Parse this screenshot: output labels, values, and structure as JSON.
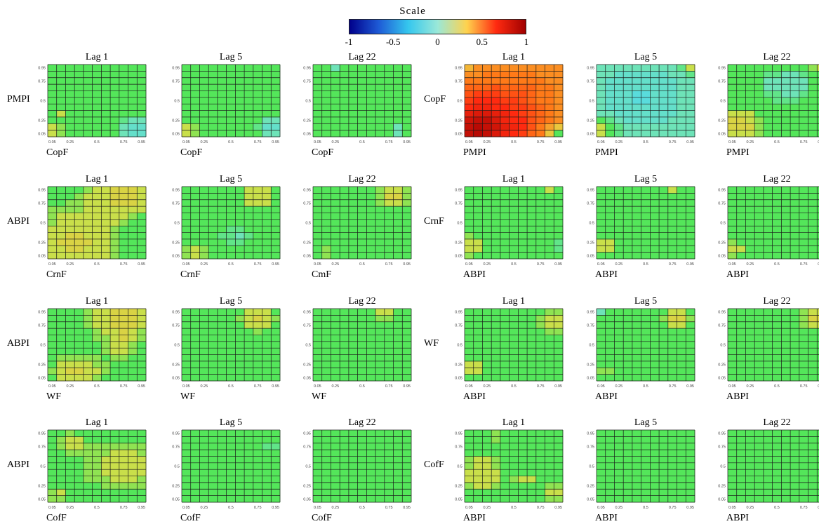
{
  "legend": {
    "title": "Scale",
    "ticks": [
      "-1",
      "-0.5",
      "0",
      "0.5",
      "1"
    ],
    "tick_values": [
      -1,
      -0.5,
      0,
      0.5,
      1
    ],
    "colors": [
      "#00008b",
      "#1e5bd6",
      "#35c7ee",
      "#9ae8d8",
      "#ffd24d",
      "#ff2a10",
      "#a00000"
    ]
  },
  "chart_data": {
    "type": "heatmap",
    "quantiles": [
      0.05,
      0.15,
      0.25,
      0.35,
      0.45,
      0.5,
      0.55,
      0.65,
      0.75,
      0.85,
      0.95
    ],
    "x_ticks": [
      "0.05",
      "0.25",
      "0.5",
      "0.75",
      "0.95"
    ],
    "y_ticks": [
      "0.95",
      "0.75",
      "0.5",
      "0.25",
      "0.05"
    ],
    "panels": [
      {
        "row": 0,
        "col": 0,
        "title": "Lag 1",
        "ylabel": "PMPI",
        "xlabel": "CopF",
        "base": 0.0,
        "blobs": [
          {
            "x": 0.9,
            "y": 0.1,
            "v": -0.18,
            "r": 0.15
          },
          {
            "x": 0.05,
            "y": 0.1,
            "v": 0.12,
            "r": 0.1
          },
          {
            "x": 0.15,
            "y": 0.35,
            "v": 0.1,
            "r": 0.05
          },
          {
            "x": 0.2,
            "y": 0.95,
            "v": -0.12,
            "r": 0.03
          }
        ]
      },
      {
        "row": 0,
        "col": 1,
        "title": "Lag 5",
        "ylabel": "",
        "xlabel": "CopF",
        "base": 0.0,
        "blobs": [
          {
            "x": 0.9,
            "y": 0.15,
            "v": -0.14,
            "r": 0.12
          },
          {
            "x": 0.08,
            "y": 0.1,
            "v": 0.1,
            "r": 0.1
          }
        ]
      },
      {
        "row": 0,
        "col": 2,
        "title": "Lag 22",
        "ylabel": "",
        "xlabel": "CopF",
        "base": 0.0,
        "blobs": [
          {
            "x": 0.85,
            "y": 0.1,
            "v": -0.1,
            "r": 0.08
          },
          {
            "x": 0.25,
            "y": 0.95,
            "v": -0.1,
            "r": 0.03
          }
        ]
      },
      {
        "row": 0,
        "col": 3,
        "title": "Lag 1",
        "ylabel": "CopF",
        "xlabel": "PMPI",
        "base": 0.32,
        "blobs": [
          {
            "x": 0.15,
            "y": 0.1,
            "v": 0.55,
            "r": 0.28
          },
          {
            "x": 0.5,
            "y": 0.5,
            "v": 0.12,
            "r": 0.3
          },
          {
            "x": 0.95,
            "y": 0.05,
            "v": -0.35,
            "r": 0.08
          },
          {
            "x": 0.05,
            "y": 0.95,
            "v": -0.1,
            "r": 0.05
          }
        ]
      },
      {
        "row": 0,
        "col": 4,
        "title": "Lag 5",
        "ylabel": "",
        "xlabel": "PMPI",
        "base": -0.1,
        "blobs": [
          {
            "x": 0.45,
            "y": 0.55,
            "v": -0.08,
            "r": 0.25
          },
          {
            "x": 0.05,
            "y": 0.1,
            "v": 0.2,
            "r": 0.12
          },
          {
            "x": 0.95,
            "y": 0.95,
            "v": 0.2,
            "r": 0.06
          }
        ]
      },
      {
        "row": 0,
        "col": 5,
        "title": "Lag 22",
        "ylabel": "",
        "xlabel": "PMPI",
        "base": 0.02,
        "blobs": [
          {
            "x": 0.15,
            "y": 0.2,
            "v": 0.14,
            "r": 0.15
          },
          {
            "x": 0.6,
            "y": 0.7,
            "v": -0.14,
            "r": 0.2
          },
          {
            "x": 0.9,
            "y": 0.95,
            "v": 0.12,
            "r": 0.05
          }
        ]
      },
      {
        "row": 1,
        "col": 0,
        "title": "Lag 1",
        "ylabel": "ABPI",
        "xlabel": "CrnF",
        "base": 0.03,
        "blobs": [
          {
            "x": 0.75,
            "y": 0.85,
            "v": 0.14,
            "r": 0.2
          },
          {
            "x": 0.3,
            "y": 0.25,
            "v": 0.12,
            "r": 0.25
          },
          {
            "x": 0.9,
            "y": 0.35,
            "v": -0.08,
            "r": 0.12
          }
        ]
      },
      {
        "row": 1,
        "col": 1,
        "title": "Lag 5",
        "ylabel": "",
        "xlabel": "CrnF",
        "base": 0.0,
        "blobs": [
          {
            "x": 0.75,
            "y": 0.85,
            "v": 0.12,
            "r": 0.15
          },
          {
            "x": 0.55,
            "y": 0.35,
            "v": -0.08,
            "r": 0.12
          },
          {
            "x": 0.15,
            "y": 0.1,
            "v": 0.1,
            "r": 0.12
          }
        ]
      },
      {
        "row": 1,
        "col": 2,
        "title": "Lag 22",
        "ylabel": "",
        "xlabel": "CmF",
        "base": 0.0,
        "blobs": [
          {
            "x": 0.8,
            "y": 0.85,
            "v": 0.14,
            "r": 0.13
          },
          {
            "x": 0.15,
            "y": 0.1,
            "v": 0.08,
            "r": 0.1
          }
        ]
      },
      {
        "row": 1,
        "col": 3,
        "title": "Lag 1",
        "ylabel": "CrnF",
        "xlabel": "ABPI",
        "base": 0.0,
        "blobs": [
          {
            "x": 0.08,
            "y": 0.2,
            "v": 0.12,
            "r": 0.12
          },
          {
            "x": 0.95,
            "y": 0.2,
            "v": -0.1,
            "r": 0.06
          },
          {
            "x": 0.7,
            "y": 0.65,
            "v": 0.12,
            "r": 0.03
          },
          {
            "x": 0.85,
            "y": 0.95,
            "v": 0.12,
            "r": 0.03
          }
        ]
      },
      {
        "row": 1,
        "col": 4,
        "title": "Lag 5",
        "ylabel": "",
        "xlabel": "ABPI",
        "base": 0.0,
        "blobs": [
          {
            "x": 0.08,
            "y": 0.2,
            "v": 0.12,
            "r": 0.1
          },
          {
            "x": 0.75,
            "y": 0.95,
            "v": 0.12,
            "r": 0.03
          },
          {
            "x": 0.95,
            "y": 0.1,
            "v": -0.08,
            "r": 0.04
          }
        ]
      },
      {
        "row": 1,
        "col": 5,
        "title": "Lag 22",
        "ylabel": "",
        "xlabel": "ABPI",
        "base": 0.0,
        "blobs": [
          {
            "x": 0.08,
            "y": 0.15,
            "v": 0.12,
            "r": 0.09
          }
        ]
      },
      {
        "row": 2,
        "col": 0,
        "title": "Lag 1",
        "ylabel": "ABPI",
        "xlabel": "WF",
        "base": 0.02,
        "blobs": [
          {
            "x": 0.75,
            "y": 0.85,
            "v": 0.14,
            "r": 0.2
          },
          {
            "x": 0.3,
            "y": 0.15,
            "v": 0.12,
            "r": 0.16
          },
          {
            "x": 0.7,
            "y": 0.5,
            "v": 0.08,
            "r": 0.1
          }
        ]
      },
      {
        "row": 2,
        "col": 1,
        "title": "Lag 5",
        "ylabel": "",
        "xlabel": "WF",
        "base": 0.0,
        "blobs": [
          {
            "x": 0.75,
            "y": 0.85,
            "v": 0.14,
            "r": 0.15
          },
          {
            "x": 0.1,
            "y": 0.1,
            "v": 0.06,
            "r": 0.08
          },
          {
            "x": 0.95,
            "y": 0.1,
            "v": -0.1,
            "r": 0.04
          }
        ]
      },
      {
        "row": 2,
        "col": 2,
        "title": "Lag 22",
        "ylabel": "",
        "xlabel": "WF",
        "base": 0.0,
        "blobs": [
          {
            "x": 0.7,
            "y": 0.95,
            "v": 0.12,
            "r": 0.1
          },
          {
            "x": 0.65,
            "y": 0.1,
            "v": -0.08,
            "r": 0.04
          }
        ]
      },
      {
        "row": 2,
        "col": 3,
        "title": "Lag 1",
        "ylabel": "WF",
        "xlabel": "ABPI",
        "base": 0.0,
        "blobs": [
          {
            "x": 0.9,
            "y": 0.8,
            "v": 0.12,
            "r": 0.15
          },
          {
            "x": 0.1,
            "y": 0.2,
            "v": 0.1,
            "r": 0.1
          },
          {
            "x": 0.45,
            "y": 0.6,
            "v": 0.1,
            "r": 0.03
          }
        ]
      },
      {
        "row": 2,
        "col": 4,
        "title": "Lag 5",
        "ylabel": "",
        "xlabel": "ABPI",
        "base": 0.0,
        "blobs": [
          {
            "x": 0.8,
            "y": 0.85,
            "v": 0.15,
            "r": 0.12
          },
          {
            "x": 0.1,
            "y": 0.15,
            "v": 0.1,
            "r": 0.05
          },
          {
            "x": 0.05,
            "y": 0.95,
            "v": -0.1,
            "r": 0.03
          }
        ]
      },
      {
        "row": 2,
        "col": 5,
        "title": "Lag 22",
        "ylabel": "",
        "xlabel": "ABPI",
        "base": 0.0,
        "blobs": [
          {
            "x": 0.9,
            "y": 0.85,
            "v": 0.16,
            "r": 0.12
          },
          {
            "x": 0.1,
            "y": 0.95,
            "v": -0.1,
            "r": 0.03
          }
        ]
      },
      {
        "row": 3,
        "col": 0,
        "title": "Lag 1",
        "ylabel": "ABPI",
        "xlabel": "CofF",
        "base": 0.02,
        "blobs": [
          {
            "x": 0.75,
            "y": 0.5,
            "v": 0.1,
            "r": 0.22
          },
          {
            "x": 0.25,
            "y": 0.8,
            "v": 0.08,
            "r": 0.12
          },
          {
            "x": 0.1,
            "y": 0.1,
            "v": 0.07,
            "r": 0.1
          }
        ]
      },
      {
        "row": 3,
        "col": 1,
        "title": "Lag 5",
        "ylabel": "",
        "xlabel": "CofF",
        "base": 0.0,
        "blobs": [
          {
            "x": 0.9,
            "y": 0.75,
            "v": -0.1,
            "r": 0.05
          }
        ]
      },
      {
        "row": 3,
        "col": 2,
        "title": "Lag 22",
        "ylabel": "",
        "xlabel": "CofF",
        "base": 0.0,
        "blobs": []
      },
      {
        "row": 3,
        "col": 3,
        "title": "Lag 1",
        "ylabel": "CofF",
        "xlabel": "ABPI",
        "base": 0.02,
        "blobs": [
          {
            "x": 0.2,
            "y": 0.4,
            "v": 0.1,
            "r": 0.15
          },
          {
            "x": 0.9,
            "y": 0.15,
            "v": 0.1,
            "r": 0.08
          },
          {
            "x": 0.6,
            "y": 0.35,
            "v": 0.08,
            "r": 0.06
          },
          {
            "x": 0.35,
            "y": 0.9,
            "v": 0.1,
            "r": 0.04
          }
        ]
      },
      {
        "row": 3,
        "col": 4,
        "title": "Lag 5",
        "ylabel": "",
        "xlabel": "ABPI",
        "base": 0.0,
        "blobs": [
          {
            "x": 0.2,
            "y": 0.35,
            "v": -0.08,
            "r": 0.05
          }
        ]
      },
      {
        "row": 3,
        "col": 5,
        "title": "Lag 22",
        "ylabel": "",
        "xlabel": "ABPI",
        "base": 0.0,
        "blobs": []
      }
    ]
  }
}
